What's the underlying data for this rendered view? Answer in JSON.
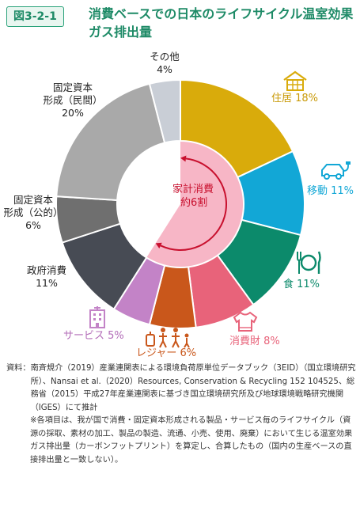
{
  "figure": {
    "number": "図3-2-1",
    "title": "消費ベースでの日本のライフサイクル温室効果ガス排出量"
  },
  "chart_data": {
    "type": "pie",
    "style": "donut",
    "center_label": "家計消費\n約6割",
    "household_share": "約6割",
    "slices": [
      {
        "label": "住居",
        "value": 18,
        "value_text": "18%",
        "color": "#d9ab0b",
        "group": "household",
        "icon": "house-icon"
      },
      {
        "label": "移動",
        "value": 11,
        "value_text": "11%",
        "color": "#12a7d6",
        "group": "household",
        "icon": "car-charging-icon"
      },
      {
        "label": "食",
        "value": 11,
        "value_text": "11%",
        "color": "#0c8a6b",
        "group": "household",
        "icon": "fork-plate-knife-icon"
      },
      {
        "label": "消費財",
        "value": 8,
        "value_text": "8%",
        "color": "#e8637a",
        "group": "household",
        "icon": "sweater-icon"
      },
      {
        "label": "レジャー",
        "value": 6,
        "value_text": "6%",
        "color": "#c9571b",
        "group": "household",
        "icon": "family-luggage-icon"
      },
      {
        "label": "サービス",
        "value": 5,
        "value_text": "5%",
        "color": "#c383c7",
        "group": "household",
        "icon": "building-icon"
      },
      {
        "label": "政府消費",
        "value": 11,
        "value_text": "11%",
        "color": "#474b54",
        "group": "other"
      },
      {
        "label": "固定資本形成（公的）",
        "value": 6,
        "value_text": "6%",
        "color": "#6f6f6f",
        "group": "other"
      },
      {
        "label": "固定資本形成（民間）",
        "value": 20,
        "value_text": "20%",
        "color": "#a9a9a9",
        "group": "other"
      },
      {
        "label": "その他",
        "value": 4,
        "value_text": "4%",
        "color": "#c9ced6",
        "group": "other"
      }
    ],
    "labels_display": {
      "juukyo": "住居 18%",
      "idou": "移動 11%",
      "shoku": "食 11%",
      "shouhizai": "消費財 8%",
      "leisure": "レジャー 6%",
      "service": "サービス 5%",
      "seifu_1": "政府消費",
      "seifu_2": "11%",
      "kouteki_1": "固定資本",
      "kouteki_2": "形成（公的）",
      "kouteki_3": "6%",
      "minkan_1": "固定資本",
      "minkan_2": "形成（民間）",
      "minkan_3": "20%",
      "sonota_1": "その他",
      "sonota_2": "4%",
      "center_1": "家計消費",
      "center_2": "約6割"
    },
    "colors": {
      "household_inner": "#f7b6c6",
      "arrow": "#c8102e",
      "label_household": "#5bb6e0"
    }
  },
  "notes": {
    "source_key": "資料：",
    "source_text": "南斉規介（2019）産業連関表による環境負荷原単位データブック（3EID）（国立環境研究所）、Nansai et al.（2020）Resources, Conservation & Recycling 152 104525、総務省（2015）平成27年産業連関表に基づき国立環境研究所及び地球環境戦略研究機関（IGES）にて推計",
    "note_text": "※各項目は、我が国で消費・固定資本形成される製品・サービス毎のライフサイクル（資源の採取、素材の加工、製品の製造、流通、小売、使用、廃棄）において生じる温室効果ガス排出量（カーボンフットプリント）を算定し、合算したもの（国内の生産ベースの直接排出量と一致しない）。"
  }
}
